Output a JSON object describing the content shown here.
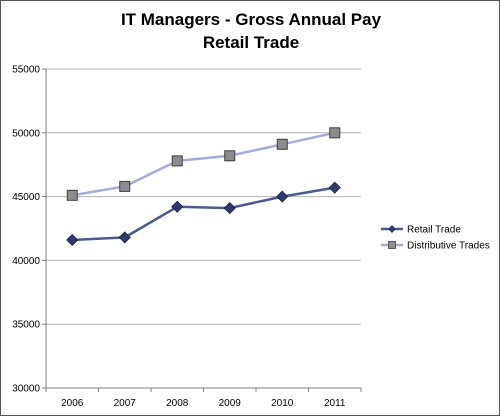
{
  "chart_data": {
    "type": "line",
    "title": [
      "IT Managers - Gross Annual Pay",
      "Retail Trade"
    ],
    "categories": [
      "2006",
      "2007",
      "2008",
      "2009",
      "2010",
      "2011"
    ],
    "ylim": [
      30000,
      55000
    ],
    "yticks": [
      "30000",
      "35000",
      "40000",
      "45000",
      "50000",
      "55000"
    ],
    "grid": "horizontal",
    "legend_position": "right",
    "series": [
      {
        "name": "Retail Trade",
        "values": [
          41600,
          41800,
          44200,
          44100,
          45000,
          45700
        ],
        "color": "#4a5a8a",
        "marker": "diamond"
      },
      {
        "name": "Distributive Trades",
        "values": [
          45100,
          45800,
          47800,
          48200,
          49100,
          50000
        ],
        "color": "#a4acd8",
        "marker": "square"
      }
    ]
  }
}
